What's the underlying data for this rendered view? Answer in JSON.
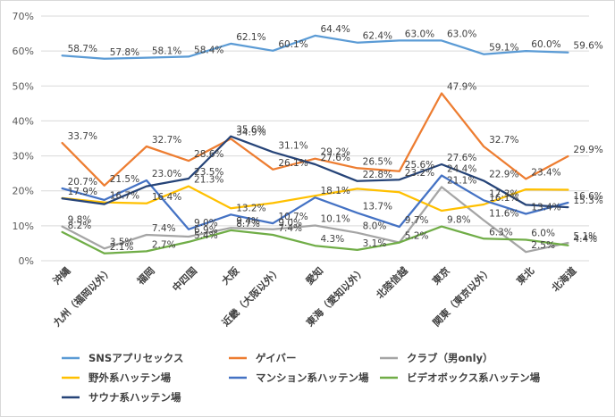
{
  "chart_data": {
    "type": "line",
    "title": "",
    "xlabel": "",
    "ylabel": "",
    "ylim": [
      0,
      0.7
    ],
    "y_ticks": [
      "0%",
      "10%",
      "20%",
      "30%",
      "40%",
      "50%",
      "60%",
      "70%"
    ],
    "grid": "horizontal",
    "legend_position": "bottom",
    "categories": [
      "沖縄",
      "九州（福岡以外）",
      "福岡",
      "中四国",
      "大阪",
      "近畿（大阪以外）",
      "愛知",
      "東海（愛知以外）",
      "北陸信越",
      "東京",
      "関東（東京以外）",
      "東北",
      "北海道"
    ],
    "series": [
      {
        "name": "SNSアプリセックス",
        "color": "#5b9bd5",
        "values": [
          0.587,
          0.578,
          0.581,
          0.584,
          0.621,
          0.601,
          0.644,
          0.624,
          0.63,
          0.63,
          0.591,
          0.6,
          0.596
        ],
        "labels": [
          "58.7%",
          "57.8%",
          "58.1%",
          "58.4%",
          "62.1%",
          "60.1%",
          "64.4%",
          "62.4%",
          "63.0%",
          "63.0%",
          "59.1%",
          "60.0%",
          "59.6%"
        ]
      },
      {
        "name": "ゲイバー",
        "color": "#ed7d31",
        "values": [
          0.337,
          0.215,
          0.327,
          0.286,
          0.349,
          0.261,
          0.292,
          0.265,
          0.256,
          0.479,
          0.327,
          0.234,
          0.299
        ],
        "labels": [
          "33.7%",
          "21.5%",
          "32.7%",
          "28.6%",
          "34.9%",
          "26.1%",
          "29.2%",
          "26.5%",
          "25.6%",
          "47.9%",
          "32.7%",
          "23.4%",
          "29.9%"
        ]
      },
      {
        "name": "クラブ（男only）",
        "color": "#a5a5a5",
        "values": [
          0.098,
          0.035,
          0.074,
          0.069,
          0.094,
          0.09,
          0.101,
          0.08,
          0.052,
          0.211,
          0.116,
          0.025,
          0.051
        ],
        "labels": [
          "9.8%",
          "3.5%",
          "7.4%",
          "6.9%",
          "9.4%",
          "9.0%",
          "10.1%",
          "8.0%",
          "5.2%",
          "21.1%",
          "11.6%",
          "2.5%",
          "5.1%"
        ]
      },
      {
        "name": "野外系ハッテン場",
        "color": "#ffc000",
        "values": [
          0.179,
          0.167,
          0.164,
          0.213,
          0.15,
          0.165,
          0.186,
          0.206,
          0.196,
          0.143,
          0.161,
          0.204,
          0.203
        ],
        "labels": [
          "17.9%",
          "16.7%",
          "16.4%",
          "21.3%",
          "",
          "",
          "",
          "",
          "",
          "",
          "16.1%",
          "",
          ""
        ]
      },
      {
        "name": "マンション系ハッテン場",
        "color": "#4472c4",
        "values": [
          0.207,
          0.174,
          0.23,
          0.09,
          0.132,
          0.107,
          0.181,
          0.137,
          0.097,
          0.244,
          0.173,
          0.134,
          0.166
        ],
        "labels": [
          "20.7%",
          "",
          "23.0%",
          "9.0%",
          "13.2%",
          "10.7%",
          "18.1%",
          "13.7%",
          "9.7%",
          "24.4%",
          "17.3%",
          "13.4%",
          "16.6%"
        ]
      },
      {
        "name": "ビデオボックス系ハッテン場",
        "color": "#70ad47",
        "values": [
          0.082,
          0.021,
          0.027,
          0.054,
          0.087,
          0.074,
          0.043,
          0.031,
          0.052,
          0.098,
          0.063,
          0.06,
          0.044
        ],
        "labels": [
          "8.2%",
          "2.1%",
          "2.7%",
          "5.4%",
          "8.7%",
          "7.4%",
          "4.3%",
          "3.1%",
          "",
          "9.8%",
          "6.3%",
          "6.0%",
          "4.4%"
        ]
      },
      {
        "name": "サウナ系ハッテン場",
        "color": "#264478",
        "values": [
          0.178,
          0.162,
          0.213,
          0.235,
          0.356,
          0.311,
          0.276,
          0.228,
          0.232,
          0.276,
          0.229,
          0.16,
          0.153
        ],
        "labels": [
          "",
          "",
          "",
          "23.5%",
          "35.6%",
          "31.1%",
          "27.6%",
          "22.8%",
          "23.2%",
          "27.6%",
          "22.9%",
          "",
          "15.3%"
        ]
      }
    ]
  }
}
